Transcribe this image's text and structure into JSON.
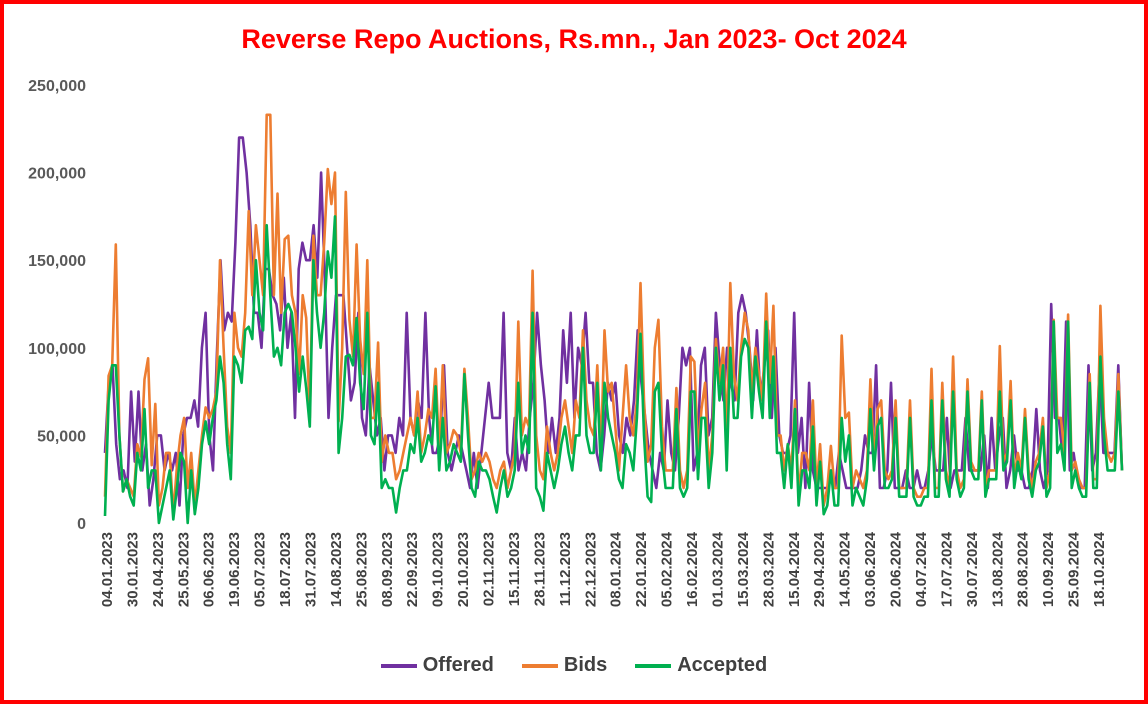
{
  "colors": {
    "border": "#ff0000",
    "title": "#ff0000",
    "offered": "#7030a0",
    "bids": "#ed7d31",
    "accepted": "#00b050",
    "axis_text": "#595959"
  },
  "chart_data": {
    "type": "line",
    "title": "Reverse Repo Auctions, Rs.mn., Jan 2023- Oct 2024",
    "xlabel": "",
    "ylabel": "",
    "ylim": [
      0,
      250000
    ],
    "y_ticks": [
      "0",
      "50,000",
      "100,000",
      "150,000",
      "200,000",
      "250,000"
    ],
    "grid": false,
    "legend_position": "bottom",
    "x_tick_labels": [
      "04.01.2023",
      "30.01.2023",
      "24.04.2023",
      "25.05.2023",
      "06.06.2023",
      "19.06.2023",
      "05.07.2023",
      "18.07.2023",
      "31.07.2023",
      "14.08.2023",
      "25.08.2023",
      "08.09.2023",
      "22.09.2023",
      "09.10.2023",
      "20.10.2023",
      "02.11.2023",
      "15.11.2023",
      "28.11.2023",
      "11.12.2023",
      "22.12.2023",
      "08.01.2024",
      "22.01.2024",
      "05.02.2024",
      "16.02.2024",
      "01.03.2024",
      "15.03.2024",
      "28.03.2024",
      "15.04.2024",
      "29.04.2024",
      "14.05.2024",
      "03.06.2024",
      "20.06.2024",
      "04.07.2024",
      "17.07.2024",
      "30.07.2024",
      "13.08.2024",
      "28.08.2024",
      "10.09.2024",
      "25.09.2024",
      "18.10.2024"
    ],
    "series": [
      {
        "name": "Offered",
        "color": "#7030a0",
        "values": [
          40000,
          80000,
          90000,
          45000,
          25000,
          30000,
          20000,
          75000,
          35000,
          75000,
          30000,
          45000,
          10000,
          25000,
          50000,
          50000,
          30000,
          40000,
          30000,
          40000,
          10000,
          50000,
          60000,
          60000,
          70000,
          55000,
          100000,
          120000,
          50000,
          30000,
          95000,
          150000,
          110000,
          120000,
          115000,
          160000,
          220000,
          220000,
          200000,
          170000,
          120000,
          120000,
          100000,
          145000,
          145000,
          130000,
          125000,
          110000,
          140000,
          100000,
          120000,
          60000,
          145000,
          160000,
          150000,
          150000,
          170000,
          140000,
          200000,
          140000,
          60000,
          100000,
          130000,
          130000,
          130000,
          100000,
          70000,
          80000,
          120000,
          60000,
          50000,
          90000,
          70000,
          50000,
          60000,
          30000,
          50000,
          50000,
          40000,
          60000,
          50000,
          120000,
          60000,
          50000,
          70000,
          60000,
          120000,
          60000,
          40000,
          40000,
          50000,
          90000,
          40000,
          30000,
          40000,
          50000,
          40000,
          30000,
          20000,
          40000,
          20000,
          40000,
          60000,
          80000,
          60000,
          60000,
          60000,
          120000,
          40000,
          30000,
          60000,
          30000,
          40000,
          30000,
          60000,
          80000,
          120000,
          90000,
          70000,
          40000,
          60000,
          40000,
          60000,
          110000,
          80000,
          120000,
          60000,
          100000,
          90000,
          120000,
          80000,
          80000,
          40000,
          30000,
          50000,
          80000,
          70000,
          80000,
          50000,
          40000,
          60000,
          50000,
          70000,
          110000,
          80000,
          60000,
          40000,
          30000,
          20000,
          40000,
          30000,
          70000,
          40000,
          30000,
          60000,
          100000,
          90000,
          100000,
          30000,
          40000,
          90000,
          100000,
          50000,
          60000,
          120000,
          90000,
          70000,
          100000,
          80000,
          70000,
          120000,
          130000,
          120000,
          100000,
          70000,
          110000,
          70000,
          90000,
          110000,
          60000,
          100000,
          50000,
          40000,
          40000,
          50000,
          120000,
          40000,
          60000,
          20000,
          80000,
          30000,
          20000,
          20000,
          20000,
          20000,
          30000,
          20000,
          40000,
          30000,
          20000,
          20000,
          20000,
          20000,
          30000,
          50000,
          40000,
          40000,
          90000,
          20000,
          20000,
          30000,
          80000,
          20000,
          20000,
          20000,
          30000,
          20000,
          20000,
          30000,
          20000,
          20000,
          30000,
          50000,
          30000,
          30000,
          30000,
          60000,
          20000,
          30000,
          30000,
          30000,
          60000,
          30000,
          30000,
          30000,
          30000,
          50000,
          20000,
          60000,
          30000,
          50000,
          60000,
          20000,
          30000,
          50000,
          30000,
          30000,
          20000,
          20000,
          30000,
          65000,
          30000,
          20000,
          30000,
          125000,
          60000,
          60000,
          40000,
          115000,
          30000,
          40000,
          25000,
          20000,
          20000,
          90000,
          30000,
          40000,
          90000,
          40000,
          40000,
          40000,
          40000,
          90000,
          30000
        ]
      },
      {
        "name": "Bids",
        "color": "#ed7d31",
        "values": [
          15000,
          84000,
          90000,
          159000,
          50000,
          18000,
          25000,
          20000,
          15000,
          45000,
          38000,
          82000,
          94000,
          33000,
          68000,
          10000,
          20000,
          40000,
          40000,
          5000,
          32000,
          50000,
          60000,
          20000,
          40000,
          10000,
          30000,
          50000,
          66000,
          60000,
          65000,
          75000,
          150000,
          100000,
          55000,
          40000,
          120000,
          100000,
          95000,
          120000,
          178000,
          130000,
          170000,
          150000,
          130000,
          233000,
          233000,
          130000,
          188000,
          120000,
          162000,
          164000,
          130000,
          120000,
          85000,
          130000,
          117000,
          60000,
          164000,
          130000,
          130000,
          160000,
          202000,
          182000,
          200000,
          58000,
          100000,
          189000,
          116000,
          95000,
          159000,
          105000,
          85000,
          150000,
          60000,
          60000,
          103000,
          35000,
          50000,
          40000,
          40000,
          25000,
          30000,
          40000,
          50000,
          60000,
          50000,
          75000,
          40000,
          50000,
          65000,
          60000,
          88000,
          40000,
          90000,
          40000,
          45000,
          53000,
          50000,
          40000,
          88000,
          60000,
          25000,
          30000,
          40000,
          35000,
          40000,
          35000,
          25000,
          20000,
          30000,
          35000,
          20000,
          30000,
          40000,
          115000,
          50000,
          60000,
          55000,
          144000,
          50000,
          30000,
          25000,
          55000,
          40000,
          30000,
          40000,
          60000,
          70000,
          55000,
          40000,
          70000,
          60000,
          110000,
          70000,
          55000,
          50000,
          90000,
          40000,
          110000,
          75000,
          80000,
          55000,
          30000,
          60000,
          90000,
          60000,
          50000,
          70000,
          137000,
          70000,
          35000,
          45000,
          100000,
          116000,
          55000,
          30000,
          30000,
          30000,
          77000,
          30000,
          20000,
          30000,
          95000,
          92000,
          40000,
          65000,
          80000,
          30000,
          50000,
          105000,
          80000,
          100000,
          50000,
          137000,
          85000,
          70000,
          100000,
          120000,
          110000,
          75000,
          100000,
          85000,
          70000,
          131000,
          80000,
          124000,
          50000,
          50000,
          30000,
          45000,
          30000,
          70000,
          15000,
          40000,
          40000,
          30000,
          70000,
          20000,
          45000,
          10000,
          20000,
          44000,
          20000,
          20000,
          107000,
          60000,
          63000,
          20000,
          30000,
          25000,
          20000,
          30000,
          82000,
          35000,
          65000,
          70000,
          30000,
          25000,
          30000,
          70000,
          20000,
          20000,
          20000,
          70000,
          20000,
          15000,
          15000,
          20000,
          20000,
          88000,
          20000,
          20000,
          80000,
          30000,
          20000,
          95000,
          30000,
          20000,
          25000,
          82000,
          35000,
          30000,
          30000,
          75000,
          20000,
          30000,
          30000,
          30000,
          101000,
          35000,
          40000,
          81000,
          25000,
          40000,
          30000,
          65000,
          30000,
          20000,
          35000,
          40000,
          60000,
          20000,
          30000,
          116000,
          60000,
          60000,
          40000,
          119000,
          30000,
          35000,
          25000,
          20000,
          20000,
          85000,
          25000,
          25000,
          124000,
          60000,
          40000,
          35000,
          40000,
          85000,
          30000
        ]
      },
      {
        "name": "Accepted",
        "color": "#00b050",
        "values": [
          4000,
          70000,
          90000,
          90000,
          50000,
          18000,
          25000,
          15000,
          10000,
          40000,
          30000,
          65000,
          20000,
          30000,
          30000,
          0,
          10000,
          20000,
          30000,
          2000,
          20000,
          40000,
          35000,
          0,
          30000,
          5000,
          20000,
          45000,
          58000,
          45000,
          60000,
          70000,
          95000,
          80000,
          45000,
          25000,
          95000,
          90000,
          80000,
          110000,
          112000,
          105000,
          150000,
          120000,
          110000,
          170000,
          130000,
          95000,
          100000,
          90000,
          120000,
          125000,
          120000,
          100000,
          75000,
          95000,
          77000,
          55000,
          150000,
          120000,
          100000,
          120000,
          155000,
          140000,
          175000,
          40000,
          60000,
          95000,
          96000,
          90000,
          117000,
          80000,
          65000,
          120000,
          50000,
          45000,
          80000,
          20000,
          25000,
          20000,
          20000,
          6000,
          20000,
          30000,
          30000,
          45000,
          40000,
          60000,
          35000,
          40000,
          50000,
          45000,
          78000,
          30000,
          60000,
          30000,
          35000,
          45000,
          40000,
          35000,
          85000,
          50000,
          20000,
          15000,
          35000,
          30000,
          30000,
          25000,
          15000,
          6000,
          20000,
          30000,
          15000,
          20000,
          30000,
          80000,
          40000,
          50000,
          40000,
          120000,
          20000,
          15000,
          7000,
          40000,
          30000,
          20000,
          30000,
          45000,
          55000,
          40000,
          30000,
          50000,
          50000,
          100000,
          50000,
          40000,
          40000,
          80000,
          30000,
          80000,
          60000,
          50000,
          40000,
          25000,
          20000,
          45000,
          40000,
          30000,
          60000,
          108000,
          50000,
          15000,
          12000,
          75000,
          80000,
          40000,
          20000,
          20000,
          20000,
          65000,
          20000,
          15000,
          20000,
          75000,
          75000,
          25000,
          60000,
          60000,
          20000,
          40000,
          100000,
          70000,
          90000,
          30000,
          100000,
          60000,
          60000,
          95000,
          105000,
          100000,
          60000,
          95000,
          75000,
          60000,
          115000,
          60000,
          95000,
          40000,
          40000,
          20000,
          45000,
          20000,
          65000,
          10000,
          30000,
          30000,
          20000,
          55000,
          10000,
          35000,
          5000,
          10000,
          30000,
          10000,
          10000,
          60000,
          35000,
          50000,
          10000,
          20000,
          15000,
          10000,
          25000,
          65000,
          30000,
          55000,
          60000,
          20000,
          20000,
          25000,
          60000,
          15000,
          15000,
          15000,
          60000,
          15000,
          10000,
          10000,
          15000,
          15000,
          70000,
          15000,
          15000,
          70000,
          25000,
          15000,
          75000,
          25000,
          15000,
          20000,
          75000,
          30000,
          25000,
          25000,
          70000,
          15000,
          25000,
          25000,
          25000,
          75000,
          30000,
          35000,
          70000,
          20000,
          35000,
          25000,
          60000,
          25000,
          15000,
          30000,
          35000,
          55000,
          15000,
          20000,
          115000,
          40000,
          45000,
          30000,
          115000,
          20000,
          30000,
          20000,
          15000,
          15000,
          80000,
          20000,
          20000,
          95000,
          50000,
          30000,
          30000,
          30000,
          75000,
          30000
        ]
      }
    ]
  }
}
